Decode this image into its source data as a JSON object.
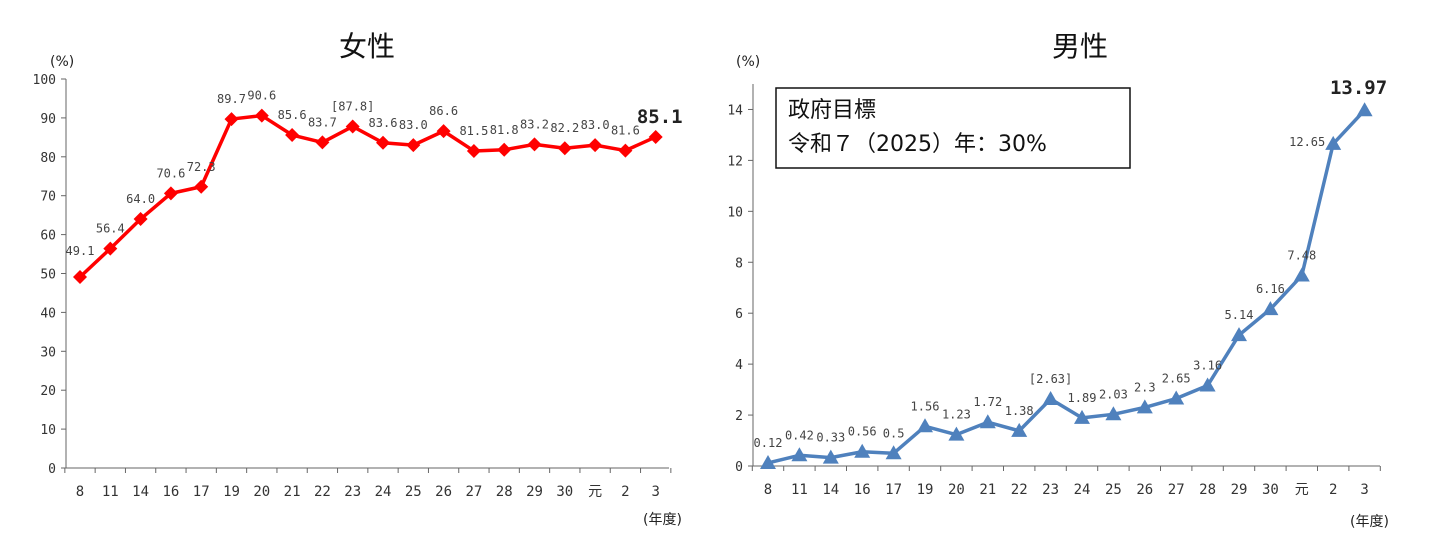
{
  "chart_data": [
    {
      "type": "line",
      "title": "女性",
      "ylabel": "(%)",
      "xlabel": "(年度)",
      "ylim": [
        0,
        100
      ],
      "yticks": [
        0,
        10,
        20,
        30,
        40,
        50,
        60,
        70,
        80,
        90,
        100
      ],
      "categories": [
        "8",
        "11",
        "14",
        "16",
        "17",
        "19",
        "20",
        "21",
        "22",
        "23",
        "24",
        "25",
        "26",
        "27",
        "28",
        "29",
        "30",
        "元",
        "2",
        "3"
      ],
      "value_labels": [
        "49.1",
        "56.4",
        "64.0",
        "70.6",
        "72.3",
        "89.7",
        "90.6",
        "85.6",
        "83.7",
        "[87.8]",
        "83.6",
        "83.0",
        "86.6",
        "81.5",
        "81.8",
        "83.2",
        "82.2",
        "83.0",
        "81.6",
        "85.1"
      ],
      "series": [
        {
          "values": [
            49.1,
            56.4,
            64.0,
            70.6,
            72.3,
            89.7,
            90.6,
            85.6,
            83.7,
            87.8,
            83.6,
            83.0,
            86.6,
            81.5,
            81.8,
            83.2,
            82.2,
            83.0,
            81.6,
            85.1
          ],
          "color": "#ff0000",
          "marker": "diamond"
        }
      ],
      "grid": false
    },
    {
      "type": "line",
      "title": "男性",
      "ylabel": "(%)",
      "xlabel": "(年度)",
      "ylim": [
        0,
        15
      ],
      "yticks": [
        0,
        2,
        4,
        6,
        8,
        10,
        12,
        14
      ],
      "categories": [
        "8",
        "11",
        "14",
        "16",
        "17",
        "19",
        "20",
        "21",
        "22",
        "23",
        "24",
        "25",
        "26",
        "27",
        "28",
        "29",
        "30",
        "元",
        "2",
        "3"
      ],
      "value_labels": [
        "0.12",
        "0.42",
        "0.33",
        "0.56",
        "0.5",
        "1.56",
        "1.23",
        "1.72",
        "1.38",
        "[2.63]",
        "1.89",
        "2.03",
        "2.3",
        "2.65",
        "3.16",
        "5.14",
        "6.16",
        "7.48",
        "12.65",
        "13.97"
      ],
      "series": [
        {
          "values": [
            0.12,
            0.42,
            0.33,
            0.56,
            0.5,
            1.56,
            1.23,
            1.72,
            1.38,
            2.63,
            1.89,
            2.03,
            2.3,
            2.65,
            3.16,
            5.14,
            6.16,
            7.48,
            12.65,
            13.97
          ],
          "color": "#4f81bd",
          "marker": "triangle"
        }
      ],
      "annotation": [
        "政府目標",
        "令和７（2025）年：30%"
      ],
      "grid": false
    }
  ]
}
